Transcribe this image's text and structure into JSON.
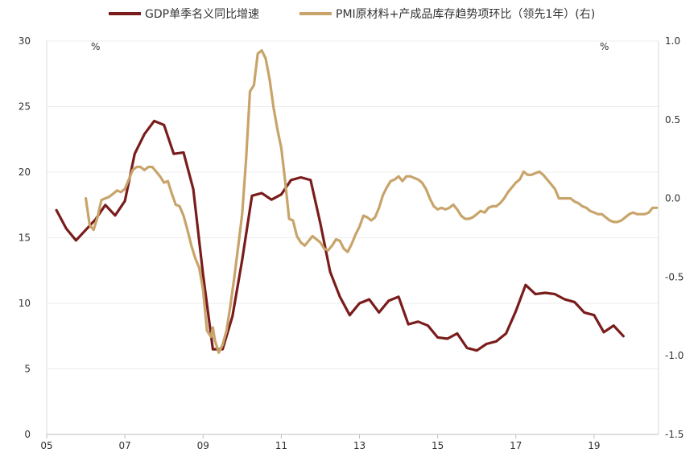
{
  "chart_data": {
    "type": "line",
    "title": "",
    "xlabel": "",
    "ylabel_left": "%",
    "ylabel_right": "%",
    "x_ticks": [
      "05",
      "07",
      "09",
      "11",
      "13",
      "15",
      "17",
      "19"
    ],
    "x_range": [
      2005.0,
      2020.65
    ],
    "ylim_left": [
      0,
      30
    ],
    "yticks_left": [
      "0",
      "5",
      "10",
      "15",
      "20",
      "25",
      "30"
    ],
    "ylim_right": [
      -1.5,
      1.0
    ],
    "yticks_right": [
      "-1.5",
      "-1.0",
      "-0.5",
      "0.0",
      "0.5",
      "1.0"
    ],
    "grid": "horizontal",
    "legend_position": "top",
    "colors": {
      "gdp": "#7a1c1c",
      "pmi": "#c8a46a"
    },
    "series": [
      {
        "name": "GDP单季名义同比增速",
        "axis": "left",
        "color": "#7a1c1c",
        "points": [
          [
            2005.25,
            17.1
          ],
          [
            2005.5,
            15.7
          ],
          [
            2005.75,
            14.8
          ],
          [
            2006.0,
            15.6
          ],
          [
            2006.25,
            16.4
          ],
          [
            2006.5,
            17.5
          ],
          [
            2006.75,
            16.7
          ],
          [
            2007.0,
            17.8
          ],
          [
            2007.25,
            21.4
          ],
          [
            2007.5,
            22.9
          ],
          [
            2007.75,
            23.9
          ],
          [
            2008.0,
            23.6
          ],
          [
            2008.25,
            21.4
          ],
          [
            2008.5,
            21.5
          ],
          [
            2008.75,
            18.7
          ],
          [
            2009.0,
            12.2
          ],
          [
            2009.25,
            6.5
          ],
          [
            2009.5,
            6.5
          ],
          [
            2009.75,
            9.0
          ],
          [
            2010.0,
            13.3
          ],
          [
            2010.25,
            18.2
          ],
          [
            2010.5,
            18.4
          ],
          [
            2010.75,
            17.9
          ],
          [
            2011.0,
            18.3
          ],
          [
            2011.25,
            19.4
          ],
          [
            2011.5,
            19.6
          ],
          [
            2011.75,
            19.4
          ],
          [
            2012.0,
            16.1
          ],
          [
            2012.25,
            12.4
          ],
          [
            2012.5,
            10.5
          ],
          [
            2012.75,
            9.1
          ],
          [
            2013.0,
            10.0
          ],
          [
            2013.25,
            10.3
          ],
          [
            2013.5,
            9.3
          ],
          [
            2013.75,
            10.2
          ],
          [
            2014.0,
            10.5
          ],
          [
            2014.25,
            8.4
          ],
          [
            2014.5,
            8.6
          ],
          [
            2014.75,
            8.3
          ],
          [
            2015.0,
            7.4
          ],
          [
            2015.25,
            7.3
          ],
          [
            2015.5,
            7.7
          ],
          [
            2015.75,
            6.6
          ],
          [
            2016.0,
            6.4
          ],
          [
            2016.25,
            6.9
          ],
          [
            2016.5,
            7.1
          ],
          [
            2016.75,
            7.7
          ],
          [
            2017.0,
            9.4
          ],
          [
            2017.25,
            11.4
          ],
          [
            2017.5,
            10.7
          ],
          [
            2017.75,
            10.8
          ],
          [
            2018.0,
            10.7
          ],
          [
            2018.25,
            10.3
          ],
          [
            2018.5,
            10.1
          ],
          [
            2018.75,
            9.3
          ],
          [
            2019.0,
            9.1
          ],
          [
            2019.25,
            7.8
          ],
          [
            2019.5,
            8.3
          ],
          [
            2019.75,
            7.5
          ]
        ]
      },
      {
        "name": "PMI原材料+产成品库存趋势项环比（领先1年）(右)",
        "axis": "right",
        "color": "#c8a46a",
        "points": [
          [
            2006.0,
            0.0
          ],
          [
            2006.1,
            -0.17
          ],
          [
            2006.2,
            -0.2
          ],
          [
            2006.3,
            -0.12
          ],
          [
            2006.4,
            -0.01
          ],
          [
            2006.5,
            0.0
          ],
          [
            2006.6,
            0.01
          ],
          [
            2006.7,
            0.03
          ],
          [
            2006.8,
            0.05
          ],
          [
            2006.9,
            0.04
          ],
          [
            2007.0,
            0.06
          ],
          [
            2007.1,
            0.12
          ],
          [
            2007.2,
            0.18
          ],
          [
            2007.3,
            0.2
          ],
          [
            2007.4,
            0.2
          ],
          [
            2007.5,
            0.18
          ],
          [
            2007.6,
            0.2
          ],
          [
            2007.7,
            0.2
          ],
          [
            2007.8,
            0.17
          ],
          [
            2007.9,
            0.14
          ],
          [
            2008.0,
            0.1
          ],
          [
            2008.1,
            0.11
          ],
          [
            2008.2,
            0.03
          ],
          [
            2008.3,
            -0.04
          ],
          [
            2008.4,
            -0.05
          ],
          [
            2008.5,
            -0.11
          ],
          [
            2008.6,
            -0.2
          ],
          [
            2008.7,
            -0.3
          ],
          [
            2008.8,
            -0.38
          ],
          [
            2008.9,
            -0.44
          ],
          [
            2009.0,
            -0.58
          ],
          [
            2009.1,
            -0.84
          ],
          [
            2009.2,
            -0.88
          ],
          [
            2009.25,
            -0.82
          ],
          [
            2009.3,
            -0.9
          ],
          [
            2009.4,
            -0.98
          ],
          [
            2009.5,
            -0.93
          ],
          [
            2009.6,
            -0.84
          ],
          [
            2009.7,
            -0.68
          ],
          [
            2009.8,
            -0.5
          ],
          [
            2009.9,
            -0.3
          ],
          [
            2010.0,
            -0.1
          ],
          [
            2010.1,
            0.25
          ],
          [
            2010.2,
            0.68
          ],
          [
            2010.3,
            0.72
          ],
          [
            2010.4,
            0.92
          ],
          [
            2010.5,
            0.94
          ],
          [
            2010.6,
            0.89
          ],
          [
            2010.7,
            0.76
          ],
          [
            2010.8,
            0.58
          ],
          [
            2010.9,
            0.44
          ],
          [
            2011.0,
            0.32
          ],
          [
            2011.1,
            0.11
          ],
          [
            2011.2,
            -0.13
          ],
          [
            2011.3,
            -0.14
          ],
          [
            2011.4,
            -0.24
          ],
          [
            2011.5,
            -0.28
          ],
          [
            2011.6,
            -0.3
          ],
          [
            2011.7,
            -0.27
          ],
          [
            2011.8,
            -0.24
          ],
          [
            2011.9,
            -0.26
          ],
          [
            2012.0,
            -0.28
          ],
          [
            2012.1,
            -0.32
          ],
          [
            2012.2,
            -0.33
          ],
          [
            2012.3,
            -0.3
          ],
          [
            2012.4,
            -0.26
          ],
          [
            2012.5,
            -0.27
          ],
          [
            2012.6,
            -0.32
          ],
          [
            2012.7,
            -0.34
          ],
          [
            2012.8,
            -0.29
          ],
          [
            2012.9,
            -0.23
          ],
          [
            2013.0,
            -0.18
          ],
          [
            2013.1,
            -0.11
          ],
          [
            2013.2,
            -0.12
          ],
          [
            2013.3,
            -0.14
          ],
          [
            2013.4,
            -0.12
          ],
          [
            2013.5,
            -0.06
          ],
          [
            2013.6,
            0.02
          ],
          [
            2013.7,
            0.07
          ],
          [
            2013.8,
            0.11
          ],
          [
            2013.9,
            0.12
          ],
          [
            2014.0,
            0.14
          ],
          [
            2014.1,
            0.11
          ],
          [
            2014.2,
            0.14
          ],
          [
            2014.3,
            0.14
          ],
          [
            2014.4,
            0.13
          ],
          [
            2014.5,
            0.12
          ],
          [
            2014.6,
            0.1
          ],
          [
            2014.7,
            0.06
          ],
          [
            2014.8,
            0.0
          ],
          [
            2014.9,
            -0.05
          ],
          [
            2015.0,
            -0.07
          ],
          [
            2015.1,
            -0.06
          ],
          [
            2015.2,
            -0.07
          ],
          [
            2015.3,
            -0.06
          ],
          [
            2015.4,
            -0.04
          ],
          [
            2015.5,
            -0.07
          ],
          [
            2015.6,
            -0.11
          ],
          [
            2015.7,
            -0.13
          ],
          [
            2015.8,
            -0.13
          ],
          [
            2015.9,
            -0.12
          ],
          [
            2016.0,
            -0.1
          ],
          [
            2016.1,
            -0.08
          ],
          [
            2016.2,
            -0.09
          ],
          [
            2016.3,
            -0.06
          ],
          [
            2016.4,
            -0.05
          ],
          [
            2016.5,
            -0.05
          ],
          [
            2016.6,
            -0.03
          ],
          [
            2016.7,
            0.0
          ],
          [
            2016.8,
            0.04
          ],
          [
            2016.9,
            0.07
          ],
          [
            2017.0,
            0.1
          ],
          [
            2017.1,
            0.12
          ],
          [
            2017.2,
            0.17
          ],
          [
            2017.3,
            0.15
          ],
          [
            2017.4,
            0.15
          ],
          [
            2017.5,
            0.16
          ],
          [
            2017.6,
            0.17
          ],
          [
            2017.7,
            0.15
          ],
          [
            2017.8,
            0.12
          ],
          [
            2017.9,
            0.09
          ],
          [
            2018.0,
            0.06
          ],
          [
            2018.1,
            0.0
          ],
          [
            2018.2,
            0.0
          ],
          [
            2018.3,
            0.0
          ],
          [
            2018.4,
            0.0
          ],
          [
            2018.5,
            -0.02
          ],
          [
            2018.6,
            -0.03
          ],
          [
            2018.7,
            -0.05
          ],
          [
            2018.8,
            -0.06
          ],
          [
            2018.9,
            -0.08
          ],
          [
            2019.0,
            -0.09
          ],
          [
            2019.1,
            -0.1
          ],
          [
            2019.2,
            -0.1
          ],
          [
            2019.3,
            -0.12
          ],
          [
            2019.4,
            -0.14
          ],
          [
            2019.5,
            -0.15
          ],
          [
            2019.6,
            -0.15
          ],
          [
            2019.7,
            -0.14
          ],
          [
            2019.8,
            -0.12
          ],
          [
            2019.9,
            -0.1
          ],
          [
            2020.0,
            -0.09
          ],
          [
            2020.1,
            -0.1
          ],
          [
            2020.2,
            -0.1
          ],
          [
            2020.3,
            -0.1
          ],
          [
            2020.4,
            -0.09
          ],
          [
            2020.5,
            -0.06
          ],
          [
            2020.6,
            -0.06
          ]
        ]
      }
    ]
  }
}
